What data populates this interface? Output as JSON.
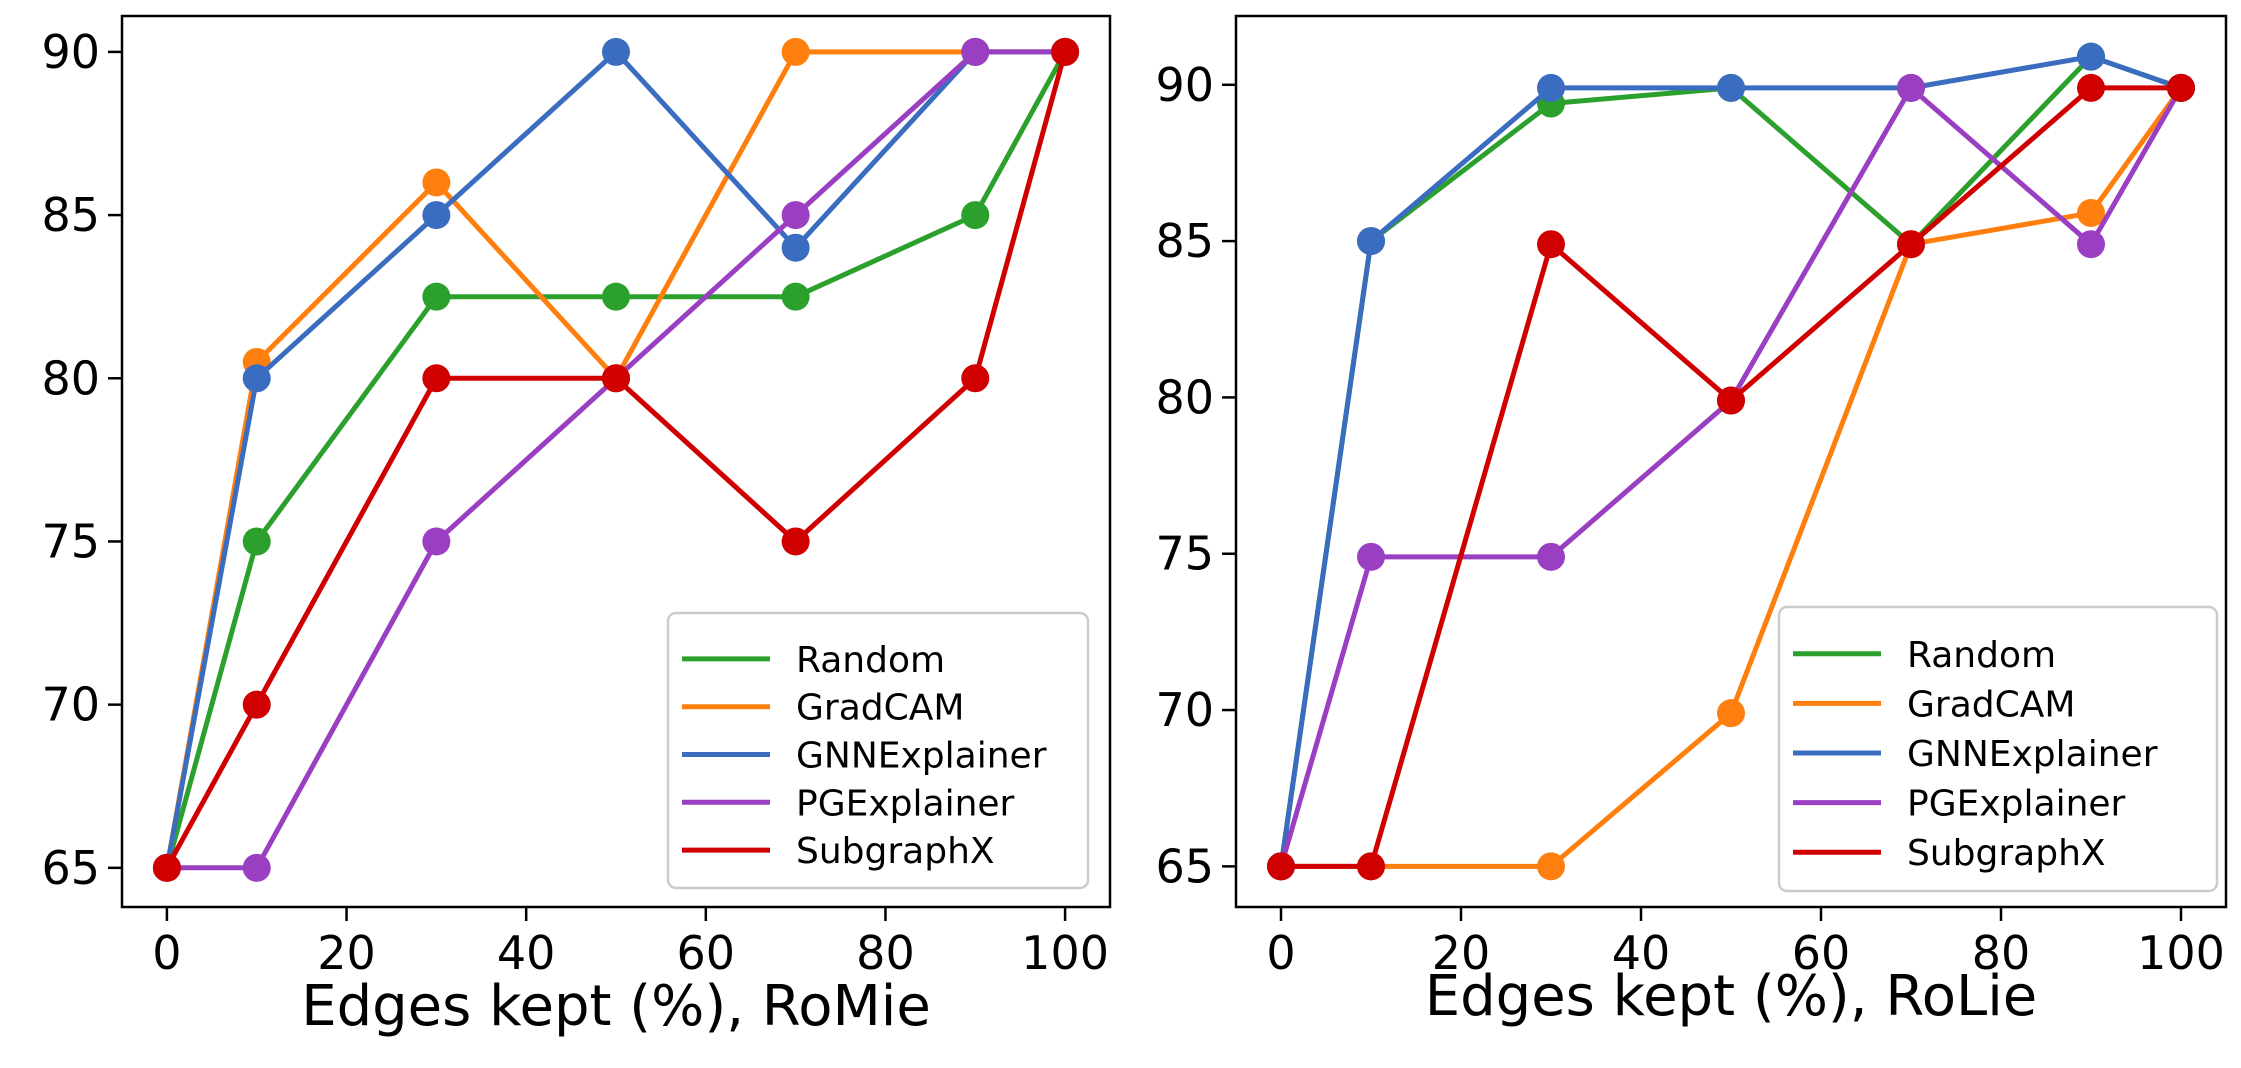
{
  "chart_data": [
    {
      "type": "line",
      "title": "",
      "xlabel": "Edges kept (%), RoMie",
      "ylabel": "",
      "x": [
        0,
        10,
        30,
        50,
        70,
        90,
        100
      ],
      "xlim": [
        -5,
        105
      ],
      "ylim": [
        63.8,
        91.1
      ],
      "xticks": [
        0,
        20,
        40,
        60,
        80,
        100
      ],
      "yticks": [
        65,
        70,
        75,
        80,
        85,
        90
      ],
      "xtick_labels": [
        "0",
        "20",
        "40",
        "60",
        "80",
        "100"
      ],
      "ytick_labels": [
        "65",
        "70",
        "75",
        "80",
        "85",
        "90"
      ],
      "grid": false,
      "legend_position": "lower-right",
      "series": [
        {
          "name": "Random",
          "color": "#2ca02c",
          "values": [
            65,
            75,
            82.5,
            82.5,
            82.5,
            85,
            90
          ]
        },
        {
          "name": "GradCAM",
          "color": "#ff7f0e",
          "values": [
            65,
            80.5,
            86,
            80,
            90,
            90,
            90
          ]
        },
        {
          "name": "GNNExplainer",
          "color": "#3a6dbf",
          "values": [
            65,
            80,
            85,
            90,
            84,
            90,
            90
          ]
        },
        {
          "name": "PGExplainer",
          "color": "#9a3fc1",
          "values": [
            65,
            65,
            75,
            80,
            85,
            90,
            90
          ]
        },
        {
          "name": "SubgraphX",
          "color": "#d00000",
          "values": [
            65,
            70,
            80,
            80,
            75,
            80,
            90
          ]
        }
      ]
    },
    {
      "type": "line",
      "title": "",
      "xlabel": "Edges kept (%), RoLie",
      "ylabel": "",
      "x": [
        0,
        10,
        30,
        50,
        70,
        90,
        100
      ],
      "xlim": [
        -5,
        105
      ],
      "ylim": [
        63.7,
        92.2
      ],
      "xticks": [
        0,
        20,
        40,
        60,
        80,
        100
      ],
      "yticks": [
        65,
        70,
        75,
        80,
        85,
        90
      ],
      "xtick_labels": [
        "0",
        "20",
        "40",
        "60",
        "80",
        "100"
      ],
      "ytick_labels": [
        "65",
        "70",
        "75",
        "80",
        "85",
        "90"
      ],
      "grid": false,
      "legend_position": "lower-right",
      "series": [
        {
          "name": "Random",
          "color": "#2ca02c",
          "values": [
            65,
            85,
            89.4,
            89.9,
            84.9,
            90.9,
            89.9
          ]
        },
        {
          "name": "GradCAM",
          "color": "#ff7f0e",
          "values": [
            65,
            65,
            65,
            69.9,
            84.9,
            85.9,
            89.9
          ]
        },
        {
          "name": "GNNExplainer",
          "color": "#3a6dbf",
          "values": [
            65,
            85,
            89.9,
            89.9,
            89.9,
            90.9,
            89.9
          ]
        },
        {
          "name": "PGExplainer",
          "color": "#9a3fc1",
          "values": [
            65,
            74.9,
            74.9,
            79.9,
            89.9,
            84.9,
            89.9
          ]
        },
        {
          "name": "SubgraphX",
          "color": "#d00000",
          "values": [
            65,
            65,
            84.9,
            79.9,
            84.9,
            89.9,
            89.9
          ]
        }
      ]
    }
  ]
}
